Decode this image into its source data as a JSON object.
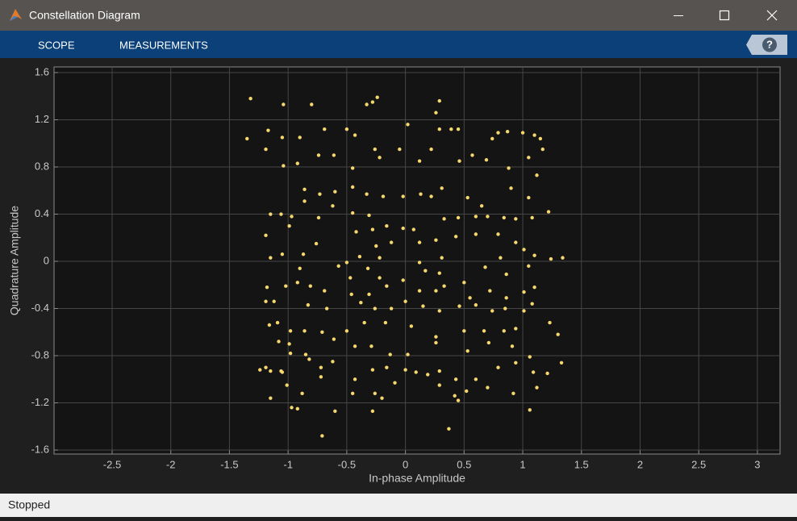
{
  "window": {
    "title": "Constellation Diagram",
    "menu": [
      "SCOPE",
      "MEASUREMENTS"
    ],
    "help": "?",
    "status": "Stopped"
  },
  "chart_data": {
    "type": "scatter",
    "xlabel": "In-phase Amplitude",
    "ylabel": "Quadrature Amplitude",
    "color": "#f5d76e",
    "grid": true,
    "xlim": [
      -2.995,
      3.193
    ],
    "ylim": [
      -1.634,
      1.648
    ],
    "xticks": [
      -2.5,
      -2,
      -1.5,
      -1,
      -0.5,
      0,
      0.5,
      1,
      1.5,
      2,
      2.5,
      3
    ],
    "yticks": [
      -1.6,
      -1.2,
      -0.8,
      -0.4,
      0,
      0.4,
      0.8,
      1.2,
      1.6
    ],
    "x": [
      -1.32,
      -1.04,
      -0.8,
      -1.35,
      -1.19,
      -1.17,
      -1.05,
      -0.9,
      -1.04,
      -0.92,
      -0.74,
      -0.69,
      -0.5,
      -0.61,
      -0.45,
      -0.43,
      -0.33,
      -0.28,
      -0.24,
      -0.26,
      -0.22,
      -0.05,
      0.02,
      0.12,
      0.22,
      0.29,
      0.39,
      0.45,
      0.46,
      0.26,
      0.29,
      0.57,
      0.69,
      0.79,
      0.87,
      1,
      1.1,
      1.15,
      1.17,
      1.05,
      0.88,
      0.74,
      -0.86,
      -0.86,
      -0.73,
      -0.6,
      -0.45,
      -0.33,
      -0.19,
      -0.02,
      0.13,
      0.22,
      0.31,
      0.53,
      0.65,
      0.9,
      1.05,
      1.12,
      -1.15,
      -1.06,
      -0.97,
      -0.74,
      -0.62,
      -0.45,
      -0.31,
      -0.16,
      -0.02,
      0.07,
      0.33,
      0.45,
      0.6,
      0.7,
      0.84,
      0.94,
      1.08,
      1.22,
      -1.19,
      -0.99,
      -0.76,
      -0.42,
      -0.28,
      -0.25,
      -0.12,
      0.12,
      0.26,
      0.43,
      0.6,
      0.79,
      0.94,
      1.01,
      1.1,
      1.24,
      1.34,
      -1.15,
      -1.05,
      -0.87,
      -0.5,
      -0.39,
      -0.22,
      0.12,
      0.31,
      0.68,
      0.81,
      1.05,
      -0.9,
      -0.57,
      -0.47,
      -0.32,
      -0.22,
      -0.02,
      0.17,
      0.29,
      0.5,
      0.86,
      -1.18,
      -1.02,
      -0.92,
      -0.81,
      -0.69,
      -0.46,
      -0.31,
      -0.16,
      0,
      0.12,
      0.26,
      0.33,
      0.55,
      0.72,
      0.86,
      1.01,
      1.1,
      -1.19,
      -1.12,
      -0.83,
      -0.67,
      -0.38,
      -0.26,
      -0.12,
      0.15,
      0.29,
      0.46,
      0.6,
      0.74,
      0.85,
      1.01,
      1.08,
      -1.16,
      -1.09,
      -0.98,
      -0.86,
      -0.71,
      -0.5,
      -0.35,
      -0.17,
      0.05,
      0.26,
      0.5,
      0.67,
      0.84,
      0.94,
      1.23,
      1.3,
      -1.08,
      -0.99,
      -0.85,
      -0.61,
      -0.43,
      -0.29,
      -0.13,
      0.02,
      0.26,
      0.53,
      0.71,
      0.91,
      1.06,
      -1.19,
      -1.06,
      -0.98,
      -0.82,
      -0.72,
      -0.62,
      -0.43,
      -0.28,
      -0.16,
      0,
      0.19,
      0.29,
      0.43,
      0.6,
      0.79,
      0.94,
      1.09,
      1.21,
      1.33,
      -1.24,
      -1.15,
      -1.01,
      -0.88,
      -0.72,
      -0.45,
      -0.26,
      -0.09,
      0.09,
      0.29,
      0.42,
      0.52,
      0.7,
      0.92,
      1.12,
      -1.15,
      -1.05,
      -0.97,
      -0.92,
      -0.6,
      -0.28,
      -0.2,
      0.45,
      1.06,
      -0.71,
      0.37
    ],
    "values": [
      1.38,
      1.33,
      1.33,
      1.04,
      0.95,
      1.11,
      1.05,
      1.05,
      0.81,
      0.83,
      0.9,
      1.12,
      1.12,
      0.9,
      0.79,
      1.07,
      1.33,
      1.35,
      1.39,
      0.95,
      0.88,
      0.95,
      1.16,
      0.85,
      0.95,
      1.12,
      1.12,
      1.12,
      0.85,
      1.26,
      1.36,
      0.9,
      0.86,
      1.09,
      1.1,
      1.09,
      1.07,
      1.04,
      0.95,
      0.88,
      0.79,
      1.04,
      0.61,
      0.51,
      0.57,
      0.59,
      0.63,
      0.57,
      0.55,
      0.55,
      0.57,
      0.55,
      0.62,
      0.54,
      0.47,
      0.62,
      0.54,
      0.73,
      0.4,
      0.4,
      0.38,
      0.37,
      0.47,
      0.41,
      0.39,
      0.3,
      0.28,
      0.27,
      0.36,
      0.37,
      0.38,
      0.38,
      0.37,
      0.36,
      0.37,
      0.42,
      0.22,
      0.3,
      0.15,
      0.25,
      0.27,
      0.13,
      0.16,
      0.16,
      0.18,
      0.21,
      0.23,
      0.23,
      0.16,
      0.1,
      0.05,
      0.02,
      0.03,
      0.03,
      0.06,
      0.06,
      -0.01,
      0.04,
      0.03,
      -0.01,
      0.03,
      -0.05,
      0.03,
      -0.04,
      -0.06,
      -0.04,
      -0.14,
      -0.06,
      -0.14,
      -0.16,
      -0.08,
      -0.1,
      -0.18,
      -0.11,
      -0.22,
      -0.21,
      -0.18,
      -0.21,
      -0.25,
      -0.28,
      -0.28,
      -0.21,
      -0.34,
      -0.25,
      -0.25,
      -0.21,
      -0.31,
      -0.25,
      -0.31,
      -0.26,
      -0.22,
      -0.34,
      -0.34,
      -0.37,
      -0.4,
      -0.35,
      -0.4,
      -0.4,
      -0.38,
      -0.42,
      -0.38,
      -0.37,
      -0.42,
      -0.4,
      -0.42,
      -0.36,
      -0.54,
      -0.52,
      -0.59,
      -0.59,
      -0.6,
      -0.59,
      -0.52,
      -0.52,
      -0.55,
      -0.64,
      -0.59,
      -0.59,
      -0.59,
      -0.57,
      -0.52,
      -0.62,
      -0.68,
      -0.7,
      -0.79,
      -0.66,
      -0.72,
      -0.72,
      -0.79,
      -0.79,
      -0.69,
      -0.76,
      -0.69,
      -0.72,
      -0.81,
      -0.9,
      -0.93,
      -0.78,
      -0.83,
      -0.9,
      -0.85,
      -1,
      -0.92,
      -0.9,
      -0.92,
      -0.96,
      -0.93,
      -1,
      -1,
      -0.9,
      -0.86,
      -0.94,
      -0.95,
      -0.86,
      -0.92,
      -0.93,
      -1.05,
      -1.12,
      -0.98,
      -1.12,
      -1.12,
      -1.03,
      -0.94,
      -1.05,
      -1.14,
      -1.1,
      -1.07,
      -1.12,
      -1.07,
      -1.16,
      -0.94,
      -1.24,
      -1.25,
      -1.27,
      -1.27,
      -1.16,
      -1.18,
      -1.26,
      -1.48,
      -1.42
    ]
  }
}
